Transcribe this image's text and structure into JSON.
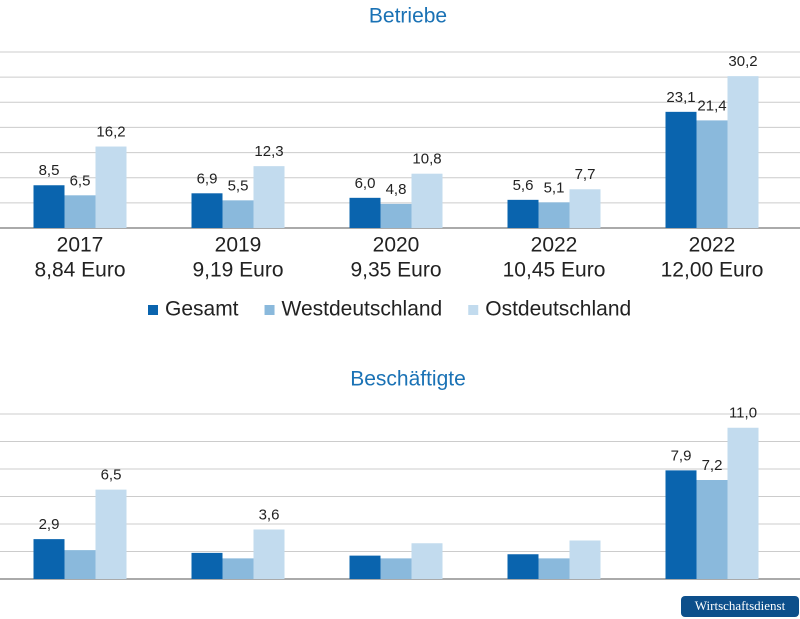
{
  "chart_data": [
    {
      "type": "bar",
      "title": "Betriebe",
      "categories": [
        "2017",
        "2019",
        "2020",
        "2022",
        "2022"
      ],
      "category_details": [
        "8,84 Euro",
        "9,19 Euro",
        "9,35 Euro",
        "10,45 Euro",
        "12,00 Euro"
      ],
      "series": [
        {
          "name": "Gesamt",
          "color": "#0a64ae",
          "values": [
            8.5,
            6.9,
            6.0,
            5.6,
            23.1
          ],
          "value_labels": [
            "8,5",
            "6,9",
            "6,0",
            "5,6",
            "23,1"
          ]
        },
        {
          "name": "Westdeutschland",
          "color": "#8ab9dc",
          "values": [
            6.5,
            5.5,
            4.8,
            5.1,
            21.4
          ],
          "value_labels": [
            "6,5",
            "5,5",
            "4,8",
            "5,1",
            "21,4"
          ]
        },
        {
          "name": "Ostdeutschland",
          "color": "#c2dbee",
          "values": [
            16.2,
            12.3,
            10.8,
            7.7,
            30.2
          ],
          "value_labels": [
            "16,2",
            "12,3",
            "10,8",
            "7,7",
            "30,2"
          ]
        }
      ],
      "ylim": [
        0,
        35
      ],
      "yticks": [
        0,
        5,
        10,
        15,
        20,
        25,
        30,
        35
      ],
      "grid": true,
      "legend": "bottom"
    },
    {
      "type": "bar",
      "title": "Beschäftigte",
      "categories": [
        null,
        null,
        null,
        null,
        null
      ],
      "series": [
        {
          "color": "#0a64ae",
          "values": [
            2.9,
            1.9,
            1.7,
            1.8,
            7.9
          ],
          "value_labels": [
            "2,9",
            null,
            null,
            null,
            "7,9"
          ]
        },
        {
          "color": "#8ab9dc",
          "values": [
            2.1,
            1.5,
            1.5,
            1.5,
            7.2
          ],
          "value_labels": [
            null,
            null,
            null,
            null,
            "7,2"
          ]
        },
        {
          "color": "#c2dbee",
          "values": [
            6.5,
            3.6,
            2.6,
            2.8,
            11.0
          ],
          "value_labels": [
            "6,5",
            "3,6",
            null,
            null,
            "11,0"
          ]
        }
      ],
      "ylim": [
        0,
        12
      ],
      "yticks": [
        0,
        2,
        4,
        6,
        8,
        10,
        12
      ],
      "grid": true
    }
  ],
  "source": "Wirtschaftsdienst"
}
